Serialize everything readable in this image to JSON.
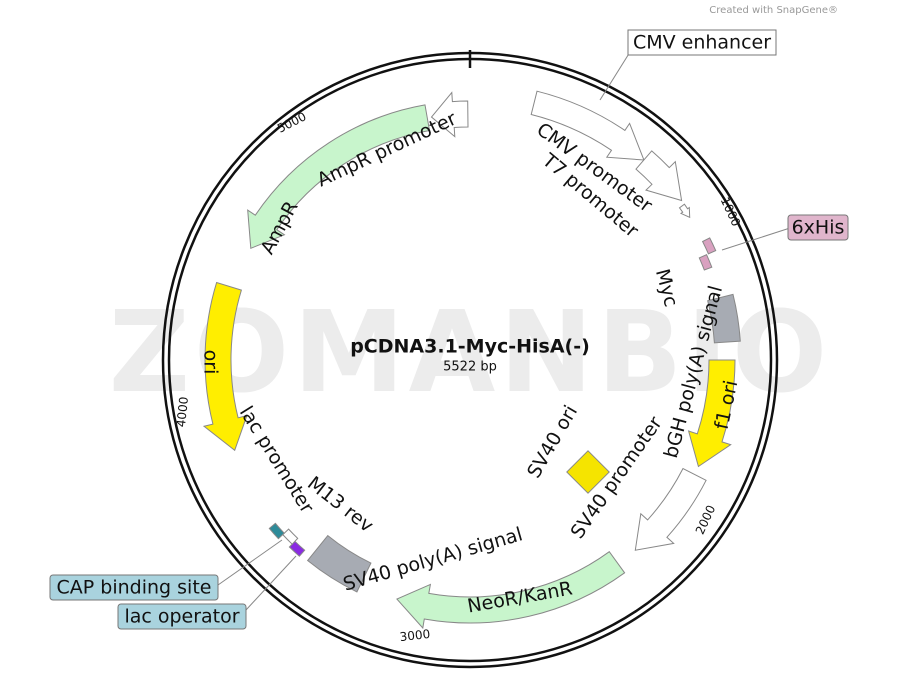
{
  "header": {
    "credit": "Created with SnapGene®"
  },
  "map": {
    "name": "pCDNA3.1-Myc-HisA(-)",
    "length": "5522 bp",
    "watermark": "ZOMANBIO",
    "features": [
      {
        "label": "CMV enhancer"
      },
      {
        "label": "CMV promoter"
      },
      {
        "label": "T7 promoter"
      },
      {
        "label": "6xHis"
      },
      {
        "label": "Myc"
      },
      {
        "label": "bGH poly(A) signal"
      },
      {
        "label": "f1 ori"
      },
      {
        "label": "SV40 promoter"
      },
      {
        "label": "SV40 ori"
      },
      {
        "label": "NeoR/KanR"
      },
      {
        "label": "SV40 poly(A) signal"
      },
      {
        "label": "M13 rev"
      },
      {
        "label": "lac promoter"
      },
      {
        "label": "CAP binding site"
      },
      {
        "label": "lac operator"
      },
      {
        "label": "ori"
      },
      {
        "label": "AmpR"
      },
      {
        "label": "AmpR promoter"
      }
    ],
    "ticks": [
      "1000",
      "2000",
      "3000",
      "4000",
      "5000"
    ]
  }
}
